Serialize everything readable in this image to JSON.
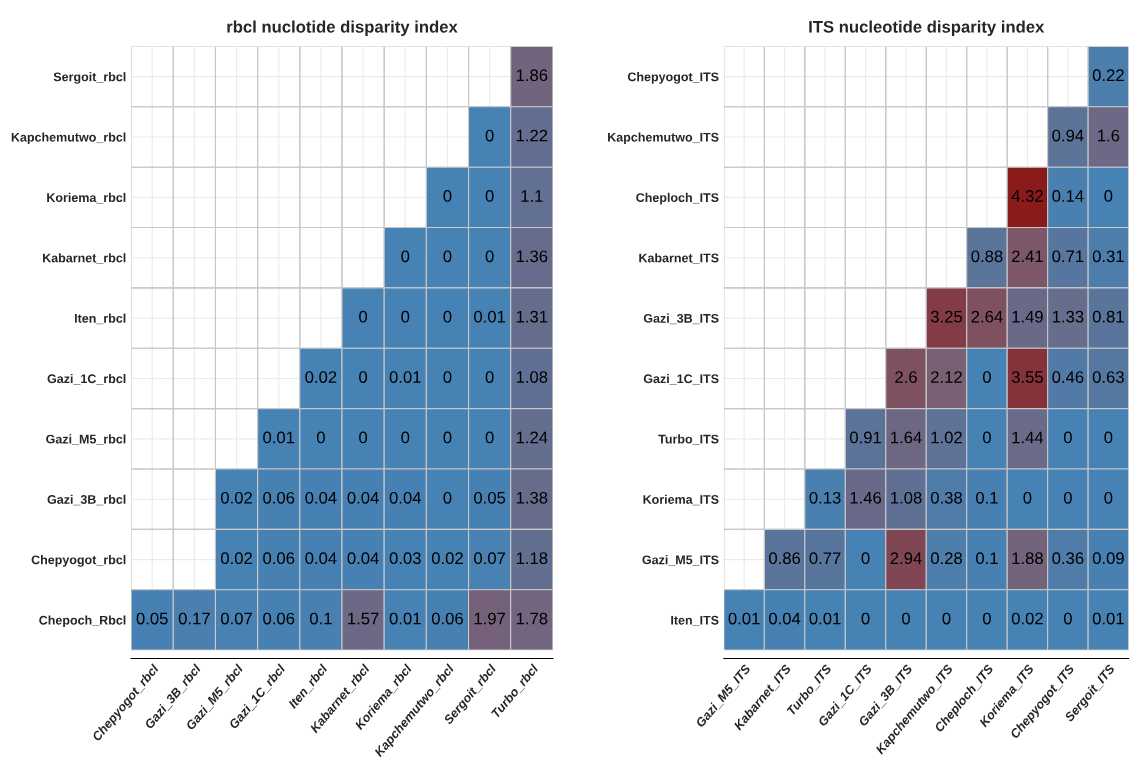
{
  "chart_data": [
    {
      "type": "heatmap",
      "title": "rbcl nuclotide disparity index",
      "grid": true,
      "data_labels": true,
      "categories": [
        "Chepyogot_rbcl",
        "Gazi_3B_rbcl",
        "Gazi_M5_rbcl",
        "Gazi_1C_rbcl",
        "Iten_rbcl",
        "Kabarnet_rbcl",
        "Koriema_rbcl",
        "Kapchemutwo_rbcl",
        "Sergoit_rbcl",
        "Turbo_rbcl"
      ],
      "y_categories": [
        "Sergoit_rbcl",
        "Kapchemutwo_rbcl",
        "Koriema_rbcl",
        "Kabarnet_rbcl",
        "Iten_rbcl",
        "Gazi_1C_rbcl",
        "Gazi_M5_rbcl",
        "Gazi_3B_rbcl",
        "Chepyogot_rbcl",
        "Chepoch_Rbcl"
      ],
      "cells": [
        [
          null,
          null,
          null,
          null,
          null,
          null,
          null,
          null,
          null,
          1.86
        ],
        [
          null,
          null,
          null,
          null,
          null,
          null,
          null,
          null,
          0,
          1.22
        ],
        [
          null,
          null,
          null,
          null,
          null,
          null,
          null,
          0,
          0,
          1.1
        ],
        [
          null,
          null,
          null,
          null,
          null,
          null,
          0,
          0,
          0,
          1.36
        ],
        [
          null,
          null,
          null,
          null,
          null,
          0,
          0,
          0,
          0.01,
          1.31
        ],
        [
          null,
          null,
          null,
          null,
          0.02,
          0,
          0.01,
          0,
          0,
          1.08
        ],
        [
          null,
          null,
          null,
          0.01,
          0,
          0,
          0,
          0,
          0,
          1.24
        ],
        [
          null,
          null,
          0.02,
          0.06,
          0.04,
          0.04,
          0.04,
          0,
          0.05,
          1.38
        ],
        [
          null,
          null,
          0.02,
          0.06,
          0.04,
          0.04,
          0.03,
          0.02,
          0.07,
          1.18
        ],
        [
          0.05,
          0.17,
          0.07,
          0.06,
          0.1,
          1.57,
          0.01,
          0.06,
          1.97,
          1.78
        ]
      ]
    },
    {
      "type": "heatmap",
      "title": "ITS nucleotide disparity index",
      "grid": true,
      "data_labels": true,
      "categories": [
        "Gazi_M5_ITS",
        "Kabarnet_ITS",
        "Turbo_ITS",
        "Gazi_1C_ITS",
        "Gazi_3B_ITS",
        "Kapchemutwo_ITS",
        "Cheploch_ITS",
        "Koriema_ITS",
        "Chepyogot_ITS",
        "Sergoit_ITS"
      ],
      "y_categories": [
        "Chepyogot_ITS",
        "Kapchemutwo_ITS",
        "Cheploch_ITS",
        "Kabarnet_ITS",
        "Gazi_3B_ITS",
        "Gazi_1C_ITS",
        "Turbo_ITS",
        "Koriema_ITS",
        "Gazi_M5_ITS",
        "Iten_ITS"
      ],
      "cells": [
        [
          null,
          null,
          null,
          null,
          null,
          null,
          null,
          null,
          null,
          0.22
        ],
        [
          null,
          null,
          null,
          null,
          null,
          null,
          null,
          null,
          0.94,
          1.6
        ],
        [
          null,
          null,
          null,
          null,
          null,
          null,
          null,
          4.32,
          0.14,
          0
        ],
        [
          null,
          null,
          null,
          null,
          null,
          null,
          0.88,
          2.41,
          0.71,
          0.31
        ],
        [
          null,
          null,
          null,
          null,
          null,
          3.25,
          2.64,
          1.49,
          1.33,
          0.81
        ],
        [
          null,
          null,
          null,
          null,
          2.6,
          2.12,
          0,
          3.55,
          0.46,
          0.63
        ],
        [
          null,
          null,
          null,
          0.91,
          1.64,
          1.02,
          0,
          1.44,
          0,
          0
        ],
        [
          null,
          null,
          0.13,
          1.46,
          1.08,
          0.38,
          0.1,
          0,
          0,
          0
        ],
        [
          null,
          0.86,
          0.77,
          0,
          2.94,
          0.28,
          0.1,
          1.88,
          0.36,
          0.09
        ],
        [
          0.01,
          0.04,
          0.01,
          0,
          0,
          0,
          0,
          0.02,
          0,
          0.01
        ]
      ]
    }
  ]
}
